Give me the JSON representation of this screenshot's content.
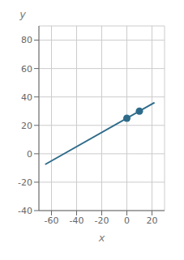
{
  "chart_data": {
    "type": "line",
    "xlabel": "x",
    "ylabel": "y",
    "xlim": [
      -70,
      30
    ],
    "ylim": [
      -40,
      90
    ],
    "xticks": [
      -60,
      -40,
      -20,
      0,
      20
    ],
    "yticks": [
      -40,
      -20,
      0,
      20,
      40,
      60,
      80
    ],
    "grid": true,
    "series": [
      {
        "type": "line",
        "color": "#2e6b8a",
        "line_style": "solid",
        "x": [
          -65,
          22
        ],
        "values": [
          -7.5,
          36
        ]
      },
      {
        "type": "scatter",
        "color": "#2e6b8a",
        "marker": "circle",
        "x": [
          0,
          10
        ],
        "values": [
          25,
          30
        ]
      }
    ]
  }
}
